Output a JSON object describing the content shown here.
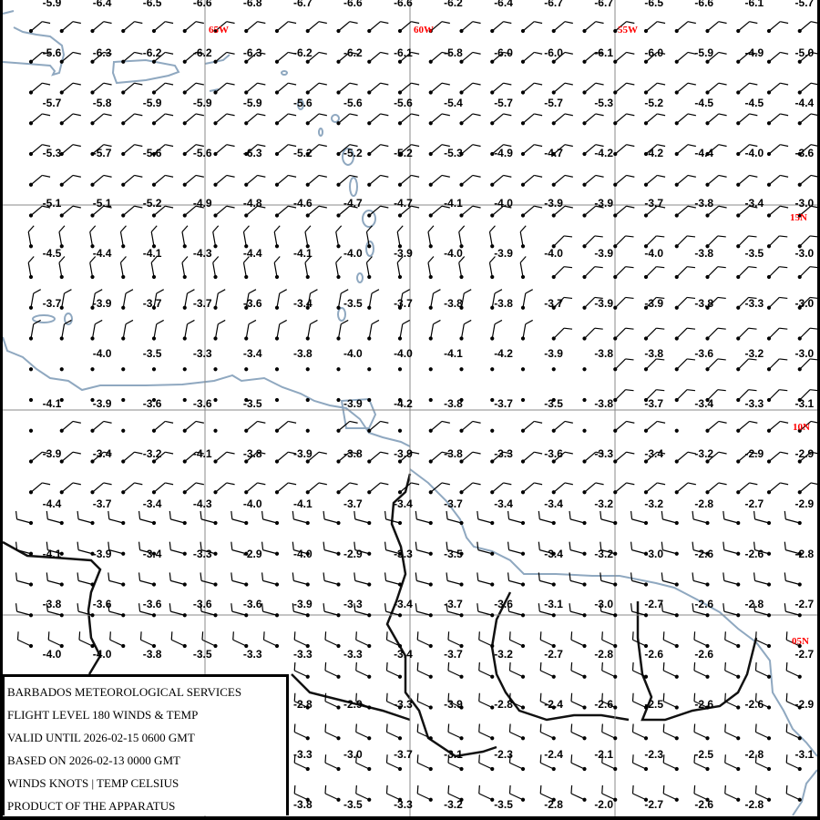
{
  "legend": {
    "lines": [
      "BARBADOS METEOROLOGICAL SERVICES",
      "FLIGHT LEVEL 180 WINDS & TEMP",
      "VALID UNTIL 2026-02-15 0600 GMT",
      "BASED ON 2026-02-13 0000 GMT",
      "WINDS KNOTS | TEMP CELSIUS",
      "PRODUCT OF THE APPARATUS"
    ]
  },
  "graticule": {
    "longitudes": [
      "65W",
      "60W",
      "55W"
    ],
    "latitudes": [
      "15N",
      "10N",
      "05N"
    ]
  },
  "colors": {
    "graticule_label": "#ff0000",
    "coastline": "#8fa8c0",
    "border": "#111111",
    "gridline": "#888888"
  },
  "temperatures": [
    [
      "-5.9",
      "-6.4",
      "-6.5",
      "-6.6",
      "-6.8",
      "-6.7",
      "-6.6",
      "-6.6",
      "-6.2",
      "-6.4",
      "-6.7",
      "-6.7",
      "-6.5",
      "-6.6",
      "-6.1",
      "-5.7"
    ],
    [
      "-5.6",
      "-6.3",
      "-6.2",
      "-6.2",
      "-6.3",
      "-6.2",
      "-6.2",
      "-6.1",
      "-5.8",
      "-6.0",
      "-6.0",
      "-6.1",
      "-6.0",
      "-5.9",
      "-4.9",
      "-5.0"
    ],
    [
      "-5.7",
      "-5.8",
      "-5.9",
      "-5.9",
      "-5.9",
      "-5.6",
      "-5.6",
      "-5.6",
      "-5.4",
      "-5.7",
      "-5.7",
      "-5.3",
      "-5.2",
      "-4.5",
      "-4.5",
      "-4.4"
    ],
    [
      "-5.3",
      "-5.7",
      "-5.6",
      "-5.6",
      "-6.3",
      "-5.2",
      "-5.2",
      "-5.2",
      "-5.3",
      "-4.9",
      "-4.7",
      "-4.2",
      "-4.2",
      "-4.4",
      "-4.0",
      "-3.6"
    ],
    [
      "-5.1",
      "-5.1",
      "-5.2",
      "-4.9",
      "-4.8",
      "-4.6",
      "-4.7",
      "-4.7",
      "-4.1",
      "-4.0",
      "-3.9",
      "-3.9",
      "-3.7",
      "-3.8",
      "-3.4",
      "-3.0"
    ],
    [
      "-4.5",
      "-4.4",
      "-4.1",
      "-4.3",
      "-4.4",
      "-4.1",
      "-4.0",
      "-3.9",
      "-4.0",
      "-3.9",
      "-4.0",
      "-3.9",
      "-4.0",
      "-3.8",
      "-3.5",
      "-3.0"
    ],
    [
      "-3.7",
      "-3.9",
      "-3.7",
      "-3.7",
      "-3.6",
      "-3.4",
      "-3.5",
      "-3.7",
      "-3.8",
      "-3.8",
      "-3.7",
      "-3.9",
      "-3.9",
      "-3.8",
      "-3.3",
      "-3.0"
    ],
    [
      null,
      "-4.0",
      "-3.5",
      "-3.3",
      "-3.4",
      "-3.8",
      "-4.0",
      "-4.0",
      "-4.1",
      "-4.2",
      "-3.9",
      "-3.8",
      "-3.8",
      "-3.6",
      "-3.2",
      "-3.0"
    ],
    [
      "-4.1",
      "-3.9",
      "-3.6",
      "-3.6",
      "-3.5",
      null,
      "-3.9",
      "-4.2",
      "-3.8",
      "-3.7",
      "-3.5",
      "-3.8",
      "-3.7",
      "-3.4",
      "-3.3",
      "-3.1"
    ],
    [
      "-3.9",
      "-3.4",
      "-3.2",
      "-4.1",
      "-3.8",
      "-3.9",
      "-3.8",
      "-3.9",
      "-3.8",
      "-3.3",
      "-3.6",
      "-3.3",
      "-3.4",
      "-3.2",
      "-2.9",
      "-2.9"
    ],
    [
      "-4.4",
      "-3.7",
      "-3.4",
      "-4.3",
      "-4.0",
      "-4.1",
      "-3.7",
      "-3.4",
      "-3.7",
      "-3.4",
      "-3.4",
      "-3.2",
      "-3.2",
      "-2.8",
      "-2.7",
      "-2.9"
    ],
    [
      "-4.1",
      "-3.9",
      "-3.4",
      "-3.3",
      "-2.9",
      "-4.0",
      "-2.9",
      "-3.3",
      "-3.5",
      null,
      "-3.4",
      "-3.2",
      "-3.0",
      "-2.6",
      "-2.6",
      "-2.8"
    ],
    [
      "-3.8",
      "-3.6",
      "-3.6",
      "-3.6",
      "-3.6",
      "-3.9",
      "-3.3",
      "-3.4",
      "-3.7",
      "-3.6",
      "-3.1",
      "-3.0",
      "-2.7",
      "-2.6",
      "-2.8",
      "-2.7"
    ],
    [
      "-4.0",
      "-4.0",
      "-3.8",
      "-3.5",
      "-3.3",
      "-3.3",
      "-3.3",
      "-3.4",
      "-3.7",
      "-3.2",
      "-2.7",
      "-2.8",
      "-2.6",
      "-2.6",
      null,
      "-2.7"
    ],
    [
      null,
      null,
      null,
      null,
      null,
      "-2.8",
      "-2.9",
      "-3.3",
      "-3.9",
      "-2.8",
      "-2.4",
      "-2.6",
      "-2.5",
      "-2.6",
      "-2.6",
      "-2.9"
    ],
    [
      null,
      null,
      null,
      null,
      null,
      "-3.3",
      "-3.0",
      "-3.7",
      "-3.1",
      "-2.3",
      "-2.4",
      "-2.1",
      "-2.3",
      "-2.5",
      "-2.8",
      "-3.1"
    ],
    [
      null,
      null,
      null,
      null,
      null,
      "-3.8",
      "-3.5",
      "-3.3",
      "-3.2",
      "-3.5",
      "-2.8",
      "-2.0",
      "-2.7",
      "-2.6",
      "-2.8",
      null
    ]
  ]
}
